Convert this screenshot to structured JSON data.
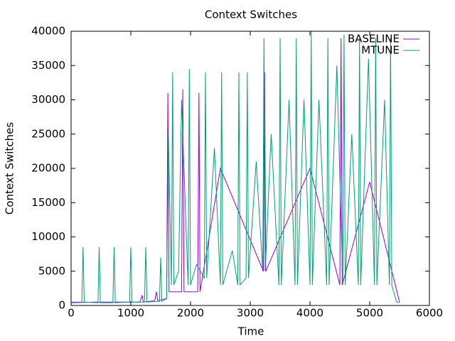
{
  "chart_data": {
    "type": "line",
    "title": "Context Switches",
    "x_label": "Time",
    "y_label": "Context Switches",
    "xlim": [
      0,
      6000
    ],
    "xticks": [
      0,
      1000,
      2000,
      3000,
      4000,
      5000,
      6000
    ],
    "ylim": [
      0,
      40000
    ],
    "yticks": [
      0,
      5000,
      10000,
      15000,
      20000,
      25000,
      30000,
      35000,
      40000
    ],
    "legend": "top-right",
    "series": [
      {
        "name": "BASELINE",
        "color": "#9400d3",
        "x": [
          0,
          400,
          1150,
          1190,
          1210,
          1400,
          1430,
          1450,
          1600,
          1620,
          1640,
          1850,
          1870,
          1890,
          2120,
          2140,
          2160,
          2500,
          3220,
          3240,
          3260,
          4000,
          4500,
          4520,
          4540,
          5000,
          5500
        ],
        "values": [
          400,
          500,
          500,
          1500,
          500,
          700,
          2000,
          700,
          1000,
          31000,
          2000,
          2000,
          31500,
          2000,
          2000,
          31000,
          2000,
          20000,
          5000,
          34000,
          5000,
          20000,
          3000,
          39000,
          3000,
          18000,
          500
        ]
      },
      {
        "name": "MTUNE",
        "color": "#009e73",
        "x": [
          0,
          180,
          200,
          220,
          450,
          470,
          490,
          700,
          720,
          740,
          980,
          1000,
          1020,
          1230,
          1250,
          1270,
          1480,
          1500,
          1520,
          1600,
          1630,
          1680,
          1700,
          1720,
          1800,
          1850,
          1960,
          1980,
          2000,
          2100,
          2230,
          2250,
          2270,
          2400,
          2500,
          2520,
          2540,
          2700,
          2790,
          2810,
          2830,
          2930,
          2950,
          2970,
          3100,
          3210,
          3230,
          3250,
          3350,
          3480,
          3500,
          3520,
          3650,
          3750,
          3770,
          3790,
          3900,
          4000,
          4020,
          4040,
          4150,
          4280,
          4300,
          4320,
          4450,
          4550,
          4570,
          4590,
          4700,
          4810,
          4830,
          4850,
          4980,
          5080,
          5100,
          5120,
          5250,
          5330,
          5350,
          5370,
          5450,
          5500
        ],
        "values": [
          500,
          500,
          8500,
          500,
          400,
          8500,
          400,
          400,
          8500,
          400,
          500,
          8500,
          500,
          500,
          8500,
          500,
          600,
          7000,
          600,
          1000,
          25000,
          3000,
          34000,
          3000,
          5000,
          30000,
          3000,
          34500,
          3000,
          6000,
          4000,
          34000,
          4000,
          23000,
          3000,
          34000,
          3000,
          8000,
          3000,
          34000,
          3000,
          4000,
          34000,
          4000,
          21000,
          5000,
          39000,
          5000,
          25000,
          3000,
          39000,
          3000,
          30000,
          3000,
          39000,
          3000,
          30000,
          3000,
          40000,
          3000,
          30000,
          3000,
          39000,
          3000,
          35000,
          3000,
          39500,
          3000,
          25000,
          3000,
          39000,
          3000,
          36000,
          3000,
          39000,
          3000,
          30000,
          3000,
          39000,
          3000,
          500,
          500
        ]
      }
    ]
  }
}
